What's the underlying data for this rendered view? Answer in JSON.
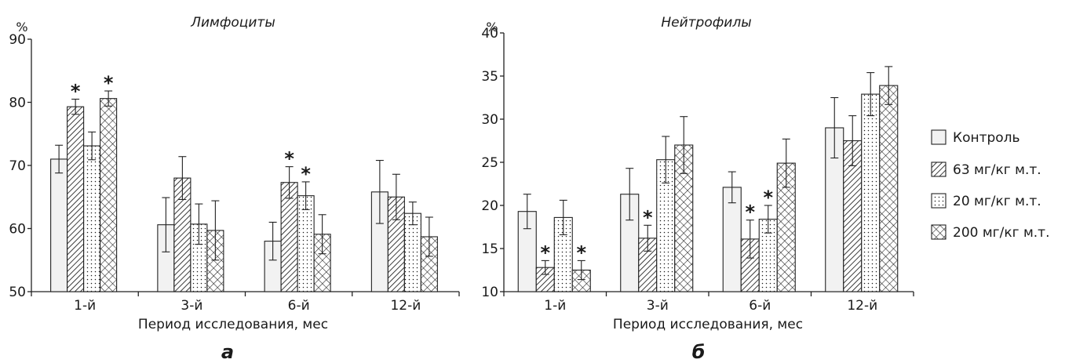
{
  "chart_data": [
    {
      "type": "bar",
      "panel_label": "а",
      "title": "Лимфоциты",
      "ylabel": "%",
      "xlabel": "Период исследования, мес",
      "ylim": [
        50,
        90
      ],
      "yticks": [
        50,
        60,
        70,
        80,
        90
      ],
      "categories": [
        "1-й",
        "3-й",
        "6-й",
        "12-й"
      ],
      "series": [
        {
          "name": "Контроль",
          "values": [
            71.0,
            60.6,
            58.0,
            65.8
          ],
          "errors": [
            2.2,
            4.3,
            3.0,
            5.0
          ],
          "significant": [
            false,
            false,
            false,
            false
          ]
        },
        {
          "name": "63 мг/кг м.т.",
          "values": [
            79.3,
            68.0,
            67.3,
            65.0
          ],
          "errors": [
            1.2,
            3.4,
            2.5,
            3.6
          ],
          "significant": [
            true,
            false,
            true,
            false
          ]
        },
        {
          "name": "20 мг/кг м.т.",
          "values": [
            73.1,
            60.7,
            65.2,
            62.4
          ],
          "errors": [
            2.2,
            3.2,
            2.2,
            1.8
          ],
          "significant": [
            false,
            false,
            true,
            false
          ]
        },
        {
          "name": "200 мг/кг м.т.",
          "values": [
            80.6,
            59.7,
            59.1,
            58.7
          ],
          "errors": [
            1.2,
            4.7,
            3.1,
            3.1
          ],
          "significant": [
            true,
            false,
            false,
            false
          ]
        }
      ]
    },
    {
      "type": "bar",
      "panel_label": "б",
      "title": "Нейтрофилы",
      "ylabel": "%",
      "xlabel": "Период исследования, мес",
      "ylim": [
        10,
        40
      ],
      "yticks": [
        10,
        15,
        20,
        25,
        30,
        35,
        40
      ],
      "categories": [
        "1-й",
        "3-й",
        "6-й",
        "12-й"
      ],
      "series": [
        {
          "name": "Контроль",
          "values": [
            19.3,
            21.3,
            22.1,
            29.0
          ],
          "errors": [
            2.0,
            3.0,
            1.8,
            3.5
          ],
          "significant": [
            false,
            false,
            false,
            false
          ]
        },
        {
          "name": "63 мг/кг м.т.",
          "values": [
            12.8,
            16.2,
            16.1,
            27.5
          ],
          "errors": [
            0.8,
            1.5,
            2.2,
            2.9
          ],
          "significant": [
            true,
            true,
            true,
            false
          ]
        },
        {
          "name": "20 мг/кг м.т.",
          "values": [
            18.6,
            25.3,
            18.4,
            32.9
          ],
          "errors": [
            2.0,
            2.7,
            1.6,
            2.5
          ],
          "significant": [
            false,
            false,
            true,
            false
          ]
        },
        {
          "name": "200 мг/кг м.т.",
          "values": [
            12.5,
            27.0,
            24.9,
            33.9
          ],
          "errors": [
            1.1,
            3.3,
            2.8,
            2.2
          ],
          "significant": [
            true,
            false,
            false,
            false
          ]
        }
      ]
    }
  ],
  "legend": {
    "position": "right",
    "items": [
      {
        "label": "Контроль",
        "pattern": "plain"
      },
      {
        "label": "63 мг/кг м.т.",
        "pattern": "diagonal"
      },
      {
        "label": "20 мг/кг м.т.",
        "pattern": "dots"
      },
      {
        "label": "200 мг/кг м.т.",
        "pattern": "crosshatch"
      }
    ]
  },
  "significance_marker": "*",
  "colors": {
    "axis": "#222222",
    "bar_outline": "#222222",
    "control_fill": "#f2f2f2"
  }
}
